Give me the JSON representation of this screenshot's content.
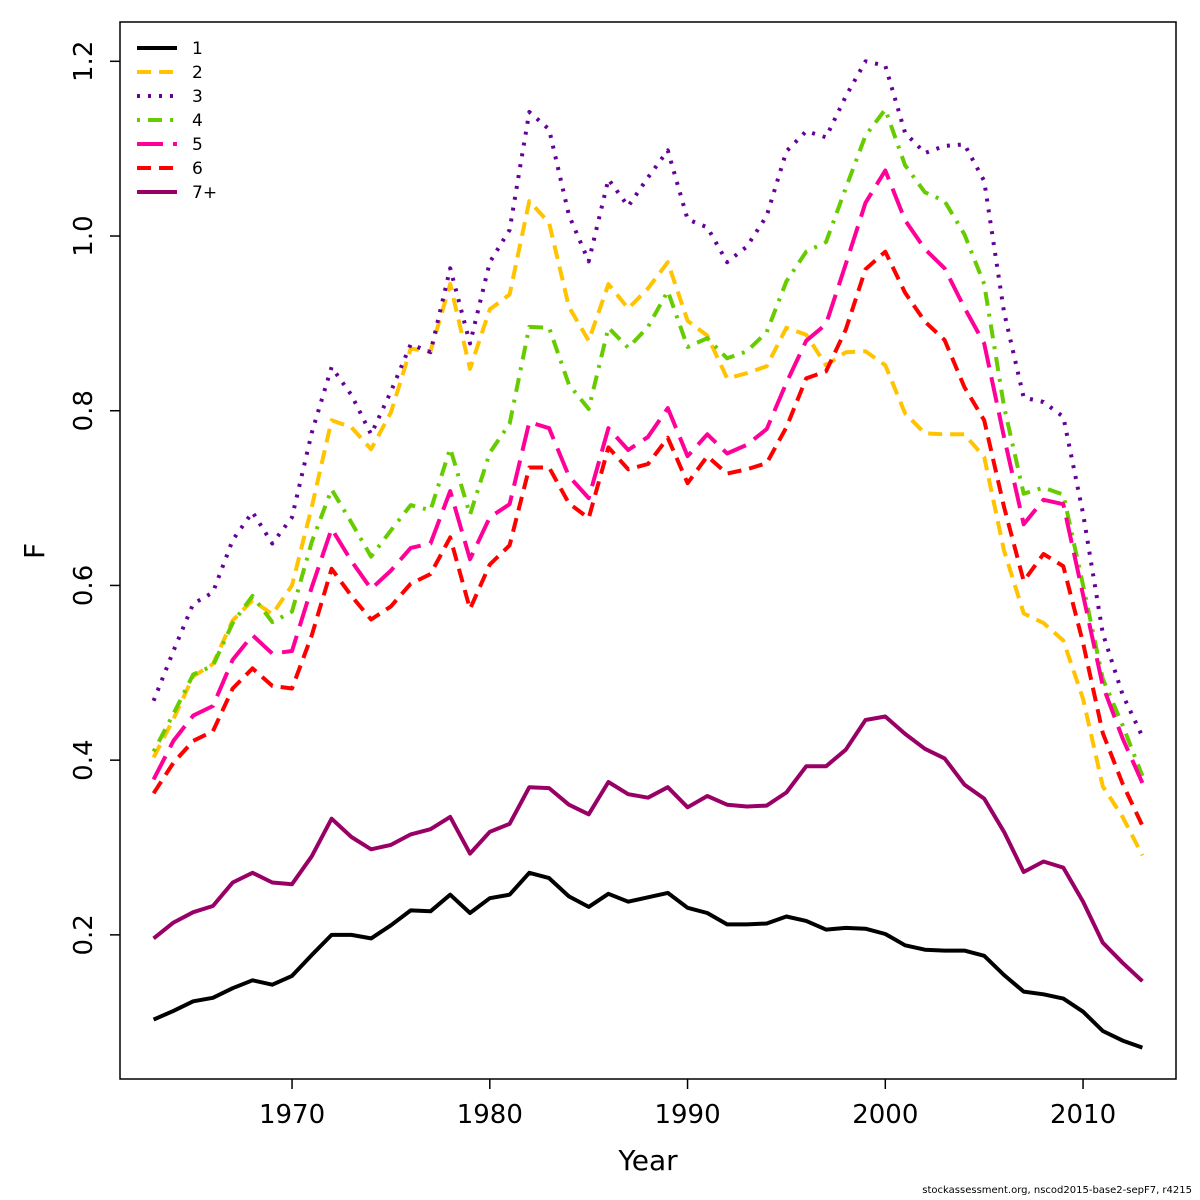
{
  "chart_data": {
    "type": "line",
    "title": "",
    "xlabel": "Year",
    "ylabel": "F",
    "xlim": [
      1961.3,
      2014.7
    ],
    "ylim": [
      0.035,
      1.245
    ],
    "x_ticks": [
      1970,
      1980,
      1990,
      2000,
      2010
    ],
    "y_ticks": [
      0.2,
      0.4,
      0.6,
      0.8,
      1.0,
      1.2
    ],
    "y_tick_labels": [
      "0.2",
      "0.4",
      "0.6",
      "0.8",
      "1.0",
      "1.2"
    ],
    "legend_position": "top-left",
    "grid": false,
    "x": [
      1963,
      1964,
      1965,
      1966,
      1967,
      1968,
      1969,
      1970,
      1971,
      1972,
      1973,
      1974,
      1975,
      1976,
      1977,
      1978,
      1979,
      1980,
      1981,
      1982,
      1983,
      1984,
      1985,
      1986,
      1987,
      1988,
      1989,
      1990,
      1991,
      1992,
      1993,
      1994,
      1995,
      1996,
      1997,
      1998,
      1999,
      2000,
      2001,
      2002,
      2003,
      2004,
      2005,
      2006,
      2007,
      2008,
      2009,
      2010,
      2011,
      2012,
      2013
    ],
    "series": [
      {
        "name": "1",
        "color": "#000000",
        "dash": "solid",
        "values": [
          0.103,
          0.113,
          0.124,
          0.128,
          0.139,
          0.148,
          0.143,
          0.153,
          0.177,
          0.2,
          0.2,
          0.196,
          0.211,
          0.228,
          0.227,
          0.246,
          0.225,
          0.242,
          0.246,
          0.271,
          0.265,
          0.244,
          0.232,
          0.247,
          0.238,
          0.243,
          0.248,
          0.231,
          0.225,
          0.212,
          0.212,
          0.213,
          0.221,
          0.216,
          0.206,
          0.208,
          0.207,
          0.201,
          0.188,
          0.183,
          0.182,
          0.182,
          0.176,
          0.154,
          0.135,
          0.132,
          0.127,
          0.112,
          0.09,
          0.079,
          0.071
        ]
      },
      {
        "name": "2",
        "color": "#ffc300",
        "dash": "dashed",
        "values": [
          0.403,
          0.447,
          0.496,
          0.51,
          0.56,
          0.583,
          0.567,
          0.6,
          0.69,
          0.789,
          0.781,
          0.756,
          0.798,
          0.871,
          0.868,
          0.945,
          0.848,
          0.916,
          0.933,
          1.04,
          1.015,
          0.919,
          0.88,
          0.945,
          0.917,
          0.94,
          0.97,
          0.903,
          0.886,
          0.837,
          0.843,
          0.851,
          0.895,
          0.887,
          0.852,
          0.867,
          0.868,
          0.852,
          0.797,
          0.774,
          0.773,
          0.773,
          0.747,
          0.64,
          0.568,
          0.557,
          0.537,
          0.47,
          0.37,
          0.335,
          0.291
        ]
      },
      {
        "name": "3",
        "color": "#660099",
        "dash": "dotted",
        "values": [
          0.468,
          0.525,
          0.579,
          0.592,
          0.652,
          0.684,
          0.648,
          0.678,
          0.775,
          0.85,
          0.818,
          0.773,
          0.822,
          0.876,
          0.867,
          0.963,
          0.877,
          0.97,
          1.007,
          1.142,
          1.122,
          1.024,
          0.971,
          1.065,
          1.034,
          1.067,
          1.098,
          1.019,
          1.01,
          0.97,
          0.988,
          1.023,
          1.097,
          1.12,
          1.113,
          1.16,
          1.2,
          1.195,
          1.118,
          1.095,
          1.103,
          1.105,
          1.063,
          0.913,
          0.815,
          0.81,
          0.793,
          0.682,
          0.545,
          0.475,
          0.427
        ]
      },
      {
        "name": "4",
        "color": "#66cc00",
        "dash": "dotdash",
        "values": [
          0.41,
          0.453,
          0.498,
          0.508,
          0.557,
          0.588,
          0.558,
          0.57,
          0.65,
          0.71,
          0.672,
          0.633,
          0.663,
          0.692,
          0.686,
          0.757,
          0.681,
          0.752,
          0.785,
          0.896,
          0.895,
          0.83,
          0.802,
          0.895,
          0.872,
          0.896,
          0.937,
          0.873,
          0.883,
          0.86,
          0.868,
          0.89,
          0.948,
          0.982,
          0.993,
          1.055,
          1.115,
          1.145,
          1.081,
          1.05,
          1.04,
          1.002,
          0.945,
          0.805,
          0.705,
          0.712,
          0.704,
          0.6,
          0.493,
          0.44,
          0.382
        ]
      },
      {
        "name": "5",
        "color": "#ff0099",
        "dash": "longdash",
        "values": [
          0.378,
          0.422,
          0.451,
          0.462,
          0.515,
          0.543,
          0.522,
          0.525,
          0.598,
          0.665,
          0.628,
          0.596,
          0.617,
          0.643,
          0.648,
          0.708,
          0.63,
          0.678,
          0.693,
          0.787,
          0.78,
          0.725,
          0.7,
          0.78,
          0.755,
          0.77,
          0.803,
          0.748,
          0.773,
          0.751,
          0.761,
          0.779,
          0.832,
          0.88,
          0.899,
          0.968,
          1.038,
          1.075,
          1.018,
          0.985,
          0.963,
          0.918,
          0.877,
          0.77,
          0.67,
          0.698,
          0.693,
          0.589,
          0.485,
          0.425,
          0.374
        ]
      },
      {
        "name": "6",
        "color": "#ff0000",
        "dash": "dashed",
        "values": [
          0.362,
          0.397,
          0.422,
          0.433,
          0.482,
          0.505,
          0.485,
          0.482,
          0.543,
          0.619,
          0.588,
          0.561,
          0.576,
          0.602,
          0.613,
          0.655,
          0.573,
          0.624,
          0.646,
          0.735,
          0.735,
          0.694,
          0.677,
          0.758,
          0.733,
          0.739,
          0.769,
          0.717,
          0.748,
          0.728,
          0.733,
          0.74,
          0.781,
          0.837,
          0.845,
          0.893,
          0.962,
          0.982,
          0.935,
          0.902,
          0.881,
          0.827,
          0.789,
          0.69,
          0.605,
          0.636,
          0.622,
          0.534,
          0.431,
          0.373,
          0.325
        ]
      },
      {
        "name": "7+",
        "color": "#990066",
        "dash": "solid",
        "values": [
          0.196,
          0.214,
          0.226,
          0.233,
          0.26,
          0.271,
          0.26,
          0.258,
          0.29,
          0.333,
          0.312,
          0.298,
          0.303,
          0.315,
          0.321,
          0.335,
          0.293,
          0.318,
          0.327,
          0.369,
          0.368,
          0.349,
          0.338,
          0.375,
          0.361,
          0.357,
          0.369,
          0.346,
          0.359,
          0.349,
          0.347,
          0.348,
          0.363,
          0.393,
          0.393,
          0.412,
          0.446,
          0.45,
          0.43,
          0.413,
          0.402,
          0.372,
          0.356,
          0.318,
          0.272,
          0.284,
          0.277,
          0.238,
          0.191,
          0.168,
          0.147
        ]
      }
    ]
  },
  "footer": "stockassessment.org, nscod2015-base2-sepF7, r4215"
}
